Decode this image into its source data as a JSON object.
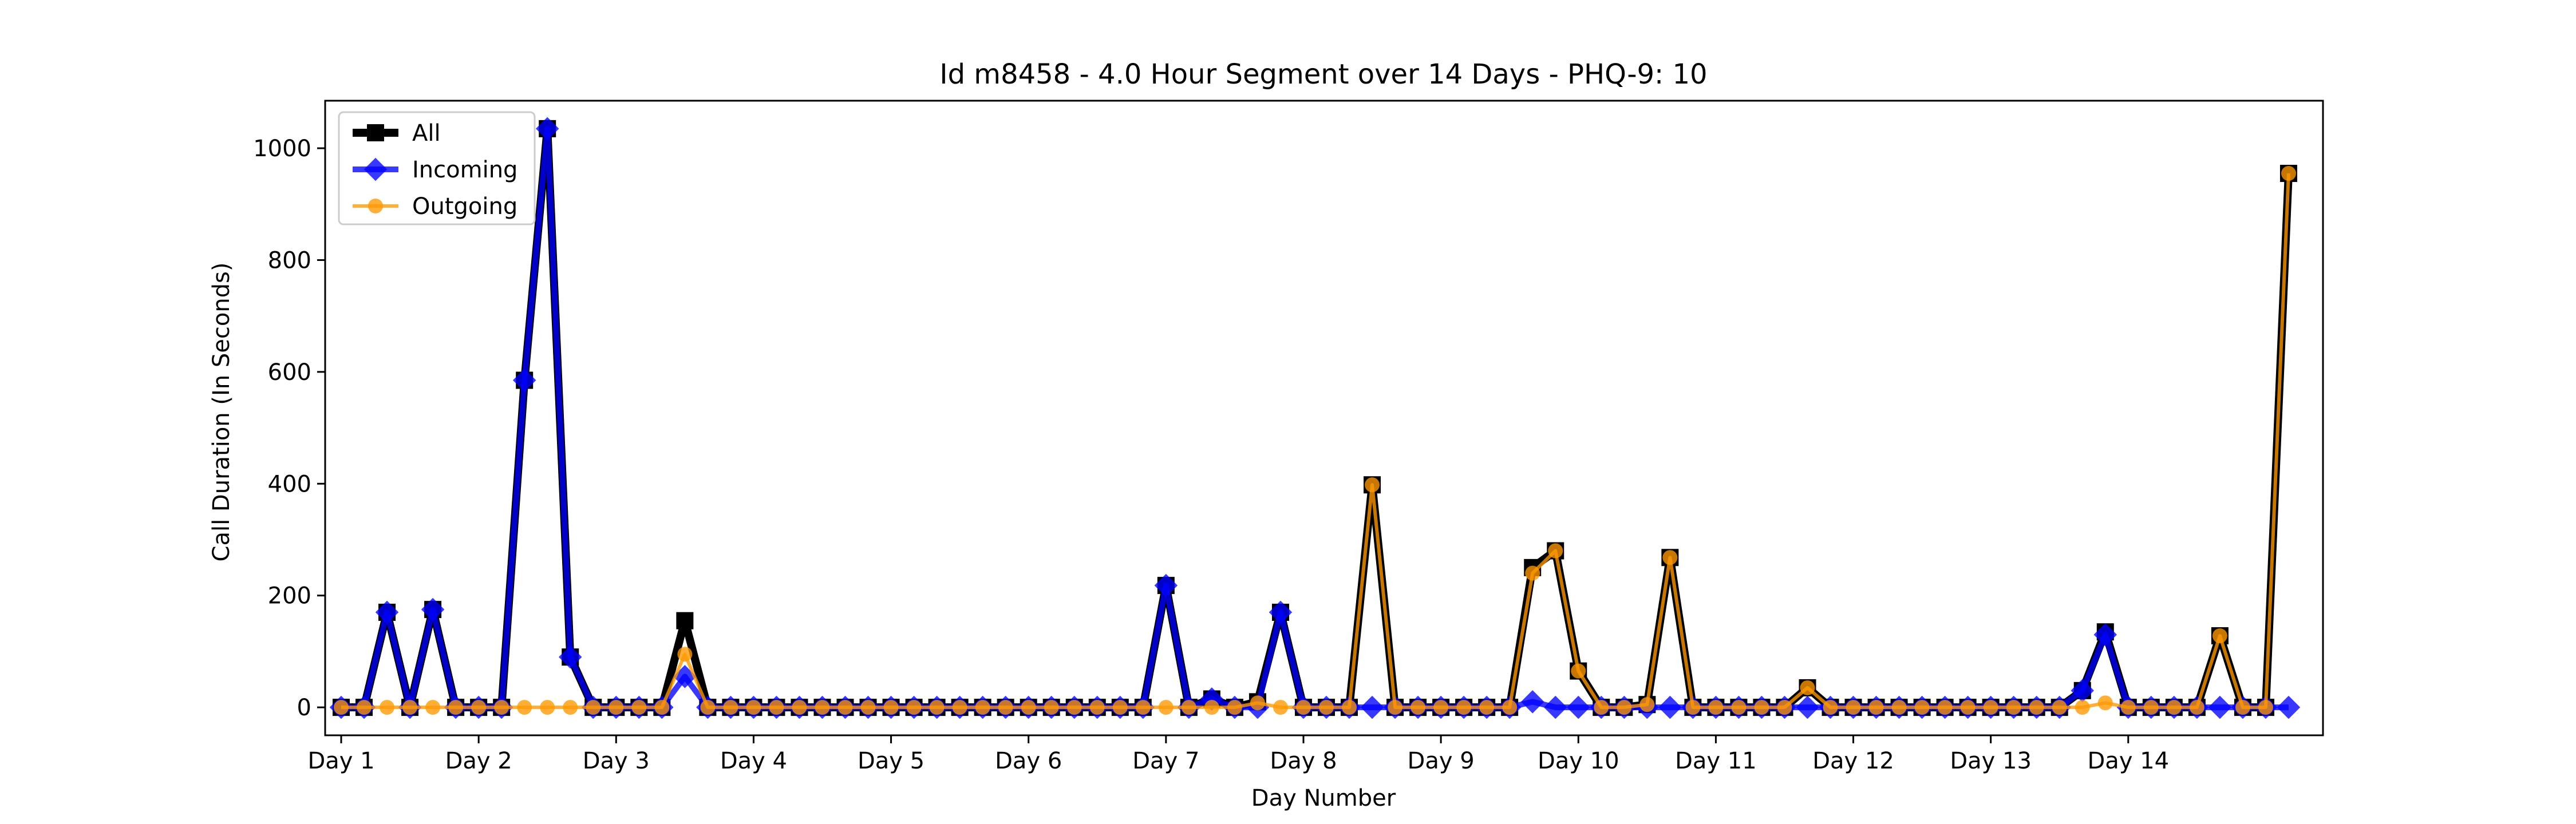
{
  "chart_data": {
    "type": "line",
    "title": "Id m8458 - 4.0 Hour Segment over 14 Days - PHQ-9: 10",
    "xlabel": "Day Number",
    "ylabel": "Call Duration (In Seconds)",
    "xlim": [
      -0.7,
      86.5
    ],
    "ylim": [
      -50,
      1085
    ],
    "yticks": [
      0,
      200,
      400,
      600,
      800,
      1000
    ],
    "xticks": [
      {
        "label": "Day 1",
        "x": 0
      },
      {
        "label": "Day 2",
        "x": 6
      },
      {
        "label": "Day 3",
        "x": 12
      },
      {
        "label": "Day 4",
        "x": 18
      },
      {
        "label": "Day 5",
        "x": 24
      },
      {
        "label": "Day 6",
        "x": 30
      },
      {
        "label": "Day 7",
        "x": 36
      },
      {
        "label": "Day 8",
        "x": 42
      },
      {
        "label": "Day 9",
        "x": 48
      },
      {
        "label": "Day 10",
        "x": 54
      },
      {
        "label": "Day 11",
        "x": 60
      },
      {
        "label": "Day 12",
        "x": 66
      },
      {
        "label": "Day 13",
        "x": 72
      },
      {
        "label": "Day 14",
        "x": 78
      }
    ],
    "legend_position": "top-left",
    "grid": false,
    "series": [
      {
        "name": "All",
        "color": "#000000",
        "marker": "square",
        "values": [
          0,
          0,
          170,
          0,
          175,
          0,
          0,
          0,
          585,
          1035,
          90,
          0,
          0,
          0,
          0,
          155,
          0,
          0,
          0,
          0,
          0,
          0,
          0,
          0,
          0,
          0,
          0,
          0,
          0,
          0,
          0,
          0,
          0,
          0,
          0,
          0,
          218,
          0,
          15,
          0,
          10,
          170,
          0,
          0,
          0,
          398,
          0,
          0,
          0,
          0,
          0,
          0,
          250,
          280,
          65,
          0,
          0,
          5,
          268,
          0,
          0,
          0,
          0,
          0,
          35,
          0,
          0,
          0,
          0,
          0,
          0,
          0,
          0,
          0,
          0,
          0,
          30,
          135,
          0,
          0,
          0,
          0,
          128,
          0,
          0,
          955
        ]
      },
      {
        "name": "Incoming",
        "color": "#0000ff",
        "marker": "diamond",
        "values": [
          0,
          0,
          170,
          0,
          175,
          0,
          0,
          0,
          585,
          1035,
          90,
          0,
          0,
          0,
          0,
          55,
          0,
          0,
          0,
          0,
          0,
          0,
          0,
          0,
          0,
          0,
          0,
          0,
          0,
          0,
          0,
          0,
          0,
          0,
          0,
          0,
          218,
          0,
          15,
          0,
          0,
          170,
          0,
          0,
          0,
          0,
          0,
          0,
          0,
          0,
          0,
          0,
          10,
          0,
          0,
          0,
          0,
          0,
          0,
          0,
          0,
          0,
          0,
          0,
          0,
          0,
          0,
          0,
          0,
          0,
          0,
          0,
          0,
          0,
          0,
          0,
          30,
          130,
          0,
          0,
          0,
          0,
          0,
          0,
          0,
          0
        ]
      },
      {
        "name": "Outgoing",
        "color": "#ff9900",
        "marker": "circle",
        "values": [
          0,
          0,
          0,
          0,
          0,
          0,
          0,
          0,
          0,
          0,
          0,
          0,
          0,
          0,
          0,
          95,
          0,
          0,
          0,
          0,
          0,
          0,
          0,
          0,
          0,
          0,
          0,
          0,
          0,
          0,
          0,
          0,
          0,
          0,
          0,
          0,
          0,
          0,
          0,
          0,
          8,
          0,
          0,
          0,
          0,
          398,
          0,
          0,
          0,
          0,
          0,
          0,
          240,
          280,
          65,
          0,
          0,
          5,
          268,
          0,
          0,
          0,
          0,
          0,
          35,
          0,
          0,
          0,
          0,
          0,
          0,
          0,
          0,
          0,
          0,
          0,
          0,
          8,
          0,
          0,
          0,
          0,
          128,
          0,
          0,
          955
        ]
      }
    ]
  }
}
